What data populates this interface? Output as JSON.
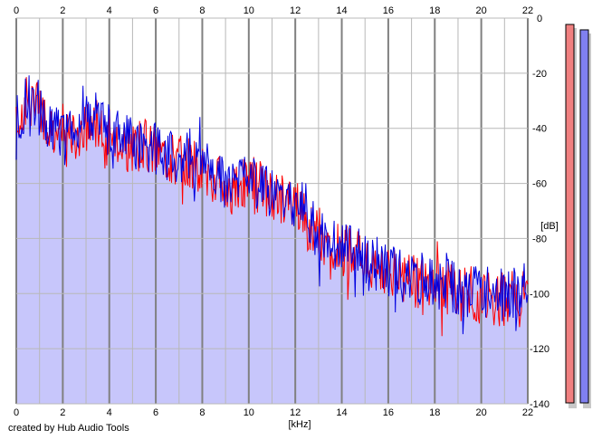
{
  "footer": {
    "credit": "created by Hub Audio Tools"
  },
  "colors": {
    "background": "#ffffff",
    "fill": "#c7c6fb",
    "grid_minor": "#b8b8b8",
    "grid_major": "#808080",
    "left_channel": "#ff0000",
    "right_channel": "#0000e0",
    "left_meter": "#f08080",
    "right_meter": "#8080f0"
  },
  "chart_data": {
    "type": "area",
    "title": "",
    "xlabel": "[kHz]",
    "ylabel": "[dB]",
    "xlim": [
      0,
      22
    ],
    "ylim": [
      -140,
      0
    ],
    "x_ticks": [
      "0",
      "2",
      "4",
      "6",
      "8",
      "10",
      "12",
      "14",
      "16",
      "18",
      "20",
      "22"
    ],
    "y_ticks": [
      "0",
      "-20",
      "-40",
      "-60",
      "-80",
      "-100",
      "-120",
      "-140"
    ],
    "grid": true,
    "x_unit": "kHz",
    "y_unit": "dB",
    "series": [
      {
        "color": "#ff0000",
        "x": [
          0,
          0.5,
          1,
          1.5,
          2,
          2.5,
          3,
          3.5,
          4,
          4.5,
          5,
          5.5,
          6,
          6.5,
          7,
          7.5,
          8,
          8.5,
          9,
          9.5,
          10,
          10.5,
          11,
          11.5,
          12,
          12.5,
          13,
          13.5,
          14,
          14.5,
          15,
          15.5,
          16,
          16.5,
          17,
          17.5,
          18,
          18.5,
          19,
          19.5,
          20,
          20.5,
          21,
          21.5,
          22
        ],
        "y": [
          -40,
          -30,
          -33,
          -38,
          -45,
          -42,
          -40,
          -37,
          -42,
          -45,
          -47,
          -46,
          -48,
          -50,
          -51,
          -53,
          -55,
          -58,
          -62,
          -61,
          -58,
          -62,
          -64,
          -66,
          -67,
          -74,
          -80,
          -82,
          -84,
          -86,
          -88,
          -90,
          -92,
          -94,
          -95,
          -96,
          -97,
          -98,
          -99,
          -100,
          -101,
          -102,
          -102,
          -101,
          -99
        ]
      },
      {
        "color": "#0000e0",
        "x": [
          0,
          0.5,
          1,
          1.5,
          2,
          2.5,
          3,
          3.5,
          4,
          4.5,
          5,
          5.5,
          6,
          6.5,
          7,
          7.5,
          8,
          8.5,
          9,
          9.5,
          10,
          10.5,
          11,
          11.5,
          12,
          12.5,
          13,
          13.5,
          14,
          14.5,
          15,
          15.5,
          16,
          16.5,
          17,
          17.5,
          18,
          18.5,
          19,
          19.5,
          20,
          20.5,
          21,
          21.5,
          22
        ],
        "y": [
          -38,
          -30,
          -35,
          -40,
          -44,
          -42,
          -38,
          -36,
          -41,
          -44,
          -46,
          -46,
          -47,
          -49,
          -50,
          -52,
          -54,
          -57,
          -60,
          -60,
          -57,
          -61,
          -63,
          -65,
          -66,
          -72,
          -78,
          -81,
          -83,
          -85,
          -87,
          -89,
          -91,
          -93,
          -94,
          -95,
          -96,
          -97,
          -98,
          -99,
          -100,
          -100,
          -100,
          -99,
          -97
        ]
      }
    ],
    "meters": [
      {
        "color": "#f08080",
        "level_db": 0
      },
      {
        "color": "#8080f0",
        "level_db": -2
      }
    ]
  }
}
